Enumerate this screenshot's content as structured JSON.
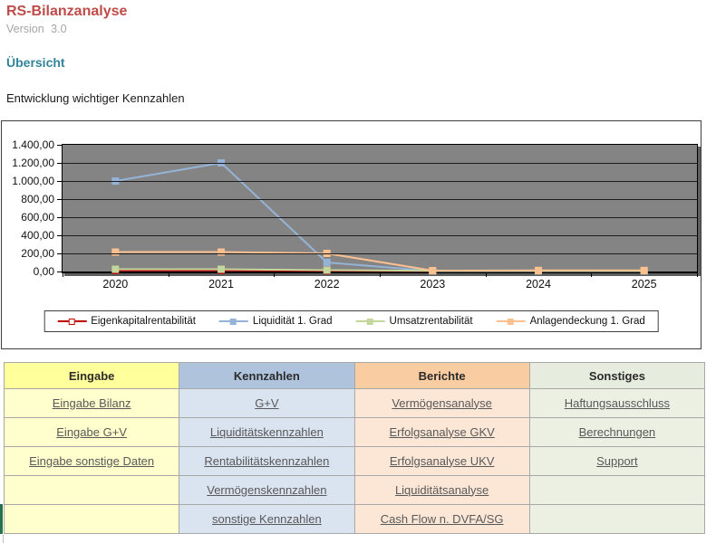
{
  "header": {
    "app_title": "RS-Bilanzanalyse",
    "version": "Version 3.0",
    "section_title": "Übersicht",
    "chart_caption": "Entwicklung wichtiger Kennzahlen"
  },
  "colors": {
    "app_title": "#BE4B48",
    "section_title": "#31859B",
    "version_text": "#A6A6A6",
    "link_text": "#595959",
    "plot_background": "#848484",
    "series_eigenkapitalrentabilitaet": "#C00000",
    "series_liquiditaet": "#95B3D7",
    "series_umsatzrentabilitaet": "#C3D69B",
    "series_anlagendeckung": "#FAC090",
    "col_eingabe_header": "#FFFF9C",
    "col_eingabe_cell": "#FFFFCE",
    "col_kennzahlen_header": "#AFC3DD",
    "col_kennzahlen_cell": "#DAE3F0",
    "col_berichte_header": "#FACCA2",
    "col_berichte_cell": "#FCE7D7",
    "col_sonstiges_header": "#E7EDDE",
    "col_sonstiges_cell": "#EBF0E2"
  },
  "chart_data": {
    "type": "line",
    "categories": [
      "2020",
      "2021",
      "2022",
      "2023",
      "2024",
      "2025"
    ],
    "series": [
      {
        "name": "Eigenkapitalrentabilität",
        "color": "#C00000",
        "marker": "open-square",
        "values": [
          10,
          10,
          5,
          2,
          2,
          2
        ]
      },
      {
        "name": "Liquidität 1. Grad",
        "color": "#95B3D7",
        "marker": "square",
        "values": [
          1000,
          1200,
          100,
          5,
          5,
          5
        ]
      },
      {
        "name": "Umsatzrentabilität",
        "color": "#C3D69B",
        "marker": "square",
        "values": [
          25,
          25,
          15,
          8,
          8,
          8
        ]
      },
      {
        "name": "Anlagendeckung 1. Grad",
        "color": "#FAC090",
        "marker": "square",
        "values": [
          215,
          215,
          200,
          10,
          12,
          12
        ]
      }
    ],
    "ylim": [
      0,
      1400
    ],
    "ytick_step": 200,
    "ytick_labels": [
      "1.400,00",
      "1.200,00",
      "1.000,00",
      "800,00",
      "600,00",
      "400,00",
      "200,00",
      "0,00"
    ],
    "grid": true,
    "legend_position": "bottom"
  },
  "table": {
    "columns": [
      {
        "header": "Eingabe",
        "links": [
          "Eingabe Bilanz",
          "Eingabe G+V",
          "Eingabe sonstige Daten",
          "",
          ""
        ]
      },
      {
        "header": "Kennzahlen",
        "links": [
          "G+V",
          "Liquiditätskennzahlen",
          "Rentabilitätskennzahlen",
          "Vermögenskennzahlen",
          "sonstige Kennzahlen"
        ]
      },
      {
        "header": "Berichte",
        "links": [
          "Vermögensanalyse",
          "Erfolgsanalyse GKV",
          "Erfolgsanalyse UKV",
          "Liquiditätsanalyse",
          "Cash Flow n. DVFA/SG"
        ]
      },
      {
        "header": "Sonstiges",
        "links": [
          "Haftungsausschluss",
          "Berechnungen",
          "Support",
          "",
          ""
        ]
      }
    ]
  }
}
